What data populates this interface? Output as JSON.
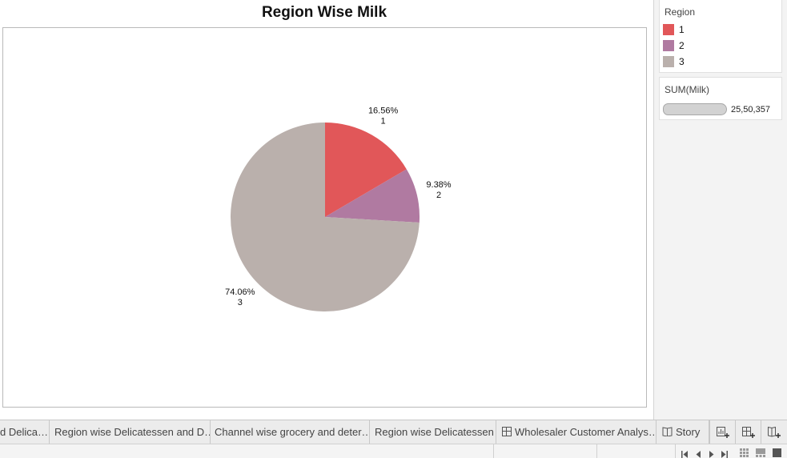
{
  "sheet": {
    "title": "Region Wise Milk"
  },
  "chart_data": {
    "type": "pie",
    "title": "Region Wise Milk",
    "measure": "SUM(Milk)",
    "slices": [
      {
        "label": "1",
        "percent": "16.56%",
        "value": 16.56,
        "color": "#e15759"
      },
      {
        "label": "2",
        "percent": "9.38%",
        "value": 9.38,
        "color": "#b07aa1"
      },
      {
        "label": "3",
        "percent": "74.06%",
        "value": 74.06,
        "color": "#bab0ac"
      }
    ]
  },
  "legend": {
    "title": "Region",
    "items": [
      {
        "label": "1",
        "color": "#e15759"
      },
      {
        "label": "2",
        "color": "#b07aa1"
      },
      {
        "label": "3",
        "color": "#bab0ac"
      }
    ]
  },
  "size_legend": {
    "title": "SUM(Milk)",
    "value": "25,50,357"
  },
  "tabs": [
    {
      "label": "d Delica…",
      "icon": "none"
    },
    {
      "label": "Region wise Delicatessen and D…",
      "icon": "none"
    },
    {
      "label": "Channel wise grocery and deter…",
      "icon": "none"
    },
    {
      "label": "Region wise Delicatessen",
      "icon": "none"
    },
    {
      "label": "Wholesaler Customer Analys…",
      "icon": "dashboard-icon"
    },
    {
      "label": "Story",
      "icon": "story-icon"
    }
  ],
  "toolbar": {
    "new_worksheet_icon": "new-worksheet-icon",
    "new_dashboard_icon": "new-dashboard-icon",
    "new_story_icon": "new-story-icon"
  },
  "status_bar": {
    "nav_icons": [
      "first-sheet-icon",
      "previous-sheet-icon",
      "next-sheet-icon",
      "last-sheet-icon"
    ],
    "view_icons": [
      "grid-view-icon",
      "filmstrip-view-icon",
      "tab-view-icon"
    ]
  }
}
